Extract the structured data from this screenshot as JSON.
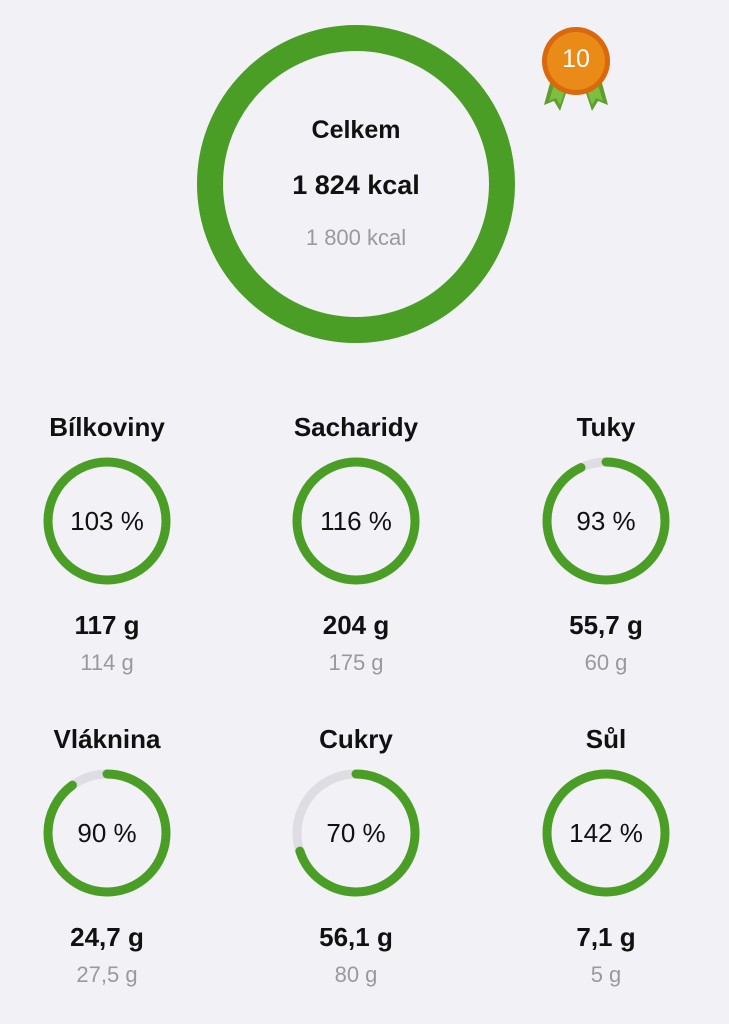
{
  "summary": {
    "label": "Celkem",
    "value": "1 824 kcal",
    "goal": "1 800 kcal",
    "progress": 1.0
  },
  "badge": {
    "number": "10",
    "icon": "award-medal-icon"
  },
  "colors": {
    "accent_green": "#4a9e25",
    "track_gray": "#dedde3",
    "badge_orange": "#e07a10"
  },
  "nutrients": [
    {
      "name": "Bílkoviny",
      "percent": "103 %",
      "value": "117 g",
      "goal": "114 g",
      "progress": 1.0
    },
    {
      "name": "Sacharidy",
      "percent": "116 %",
      "value": "204 g",
      "goal": "175 g",
      "progress": 1.0
    },
    {
      "name": "Tuky",
      "percent": "93 %",
      "value": "55,7 g",
      "goal": "60 g",
      "progress": 0.93
    },
    {
      "name": "Vláknina",
      "percent": "90 %",
      "value": "24,7 g",
      "goal": "27,5 g",
      "progress": 0.9
    },
    {
      "name": "Cukry",
      "percent": "70 %",
      "value": "56,1 g",
      "goal": "80 g",
      "progress": 0.7
    },
    {
      "name": "Sůl",
      "percent": "142 %",
      "value": "7,1 g",
      "goal": "5 g",
      "progress": 1.0
    }
  ]
}
